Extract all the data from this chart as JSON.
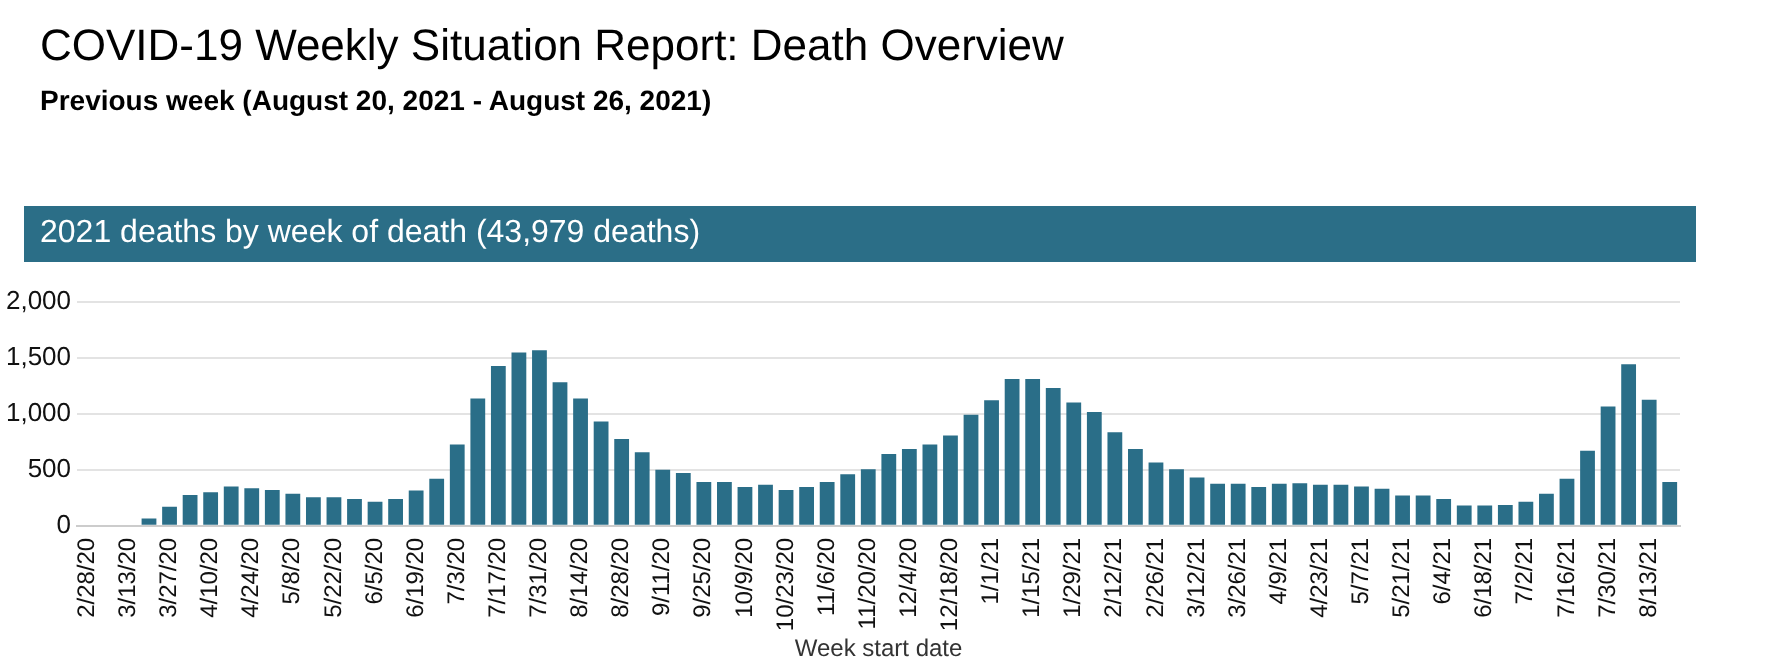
{
  "chart_data": {
    "type": "bar",
    "title": "COVID-19 Weekly Situation Report: Death Overview",
    "subtitle": "Previous week (August 20, 2021 - August 26, 2021)",
    "annotations": [
      "2021 deaths by week of death (43,979 deaths)"
    ],
    "xlabel": "Week start date",
    "categories": [
      "2/28/20",
      null,
      "3/13/20",
      null,
      "3/27/20",
      null,
      "4/10/20",
      null,
      "4/24/20",
      null,
      "5/8/20",
      null,
      "5/22/20",
      null,
      "6/5/20",
      null,
      "6/19/20",
      null,
      "7/3/20",
      null,
      "7/17/20",
      null,
      "7/31/20",
      null,
      "8/14/20",
      null,
      "8/28/20",
      null,
      "9/11/20",
      null,
      "9/25/20",
      null,
      "10/9/20",
      null,
      "10/23/20",
      null,
      "11/6/20",
      null,
      "11/20/20",
      null,
      "12/4/20",
      null,
      "12/18/20",
      null,
      "1/1/21",
      null,
      "1/15/21",
      null,
      "1/29/21",
      null,
      "2/12/21",
      null,
      "2/26/21",
      null,
      "3/12/21",
      null,
      "3/26/21",
      null,
      "4/9/21",
      null,
      "4/23/21",
      null,
      "5/7/21",
      null,
      "5/21/21",
      null,
      "6/4/21",
      null,
      "6/18/21",
      null,
      "7/2/21",
      null,
      "7/16/21",
      null,
      "7/30/21",
      null,
      "8/13/21",
      null
    ],
    "values": [
      0,
      0,
      0,
      65,
      170,
      275,
      300,
      350,
      335,
      320,
      285,
      255,
      255,
      240,
      215,
      240,
      315,
      420,
      725,
      1135,
      1425,
      1545,
      1565,
      1280,
      1135,
      930,
      775,
      655,
      500,
      470,
      390,
      390,
      345,
      365,
      320,
      345,
      390,
      460,
      505,
      640,
      685,
      725,
      805,
      990,
      1120,
      1310,
      1310,
      1230,
      1100,
      1015,
      835,
      685,
      565,
      505,
      430,
      375,
      375,
      345,
      375,
      380,
      365,
      365,
      350,
      330,
      270,
      270,
      240,
      180,
      180,
      185,
      215,
      285,
      420,
      670,
      1065,
      1440,
      1125,
      390
    ],
    "color": "#2a6e88",
    "ylim": [
      0,
      2000
    ],
    "yticks": [
      0,
      500,
      {
        "value": 1000,
        "label": "1,000"
      },
      {
        "value": 1500,
        "label": "1,500"
      },
      {
        "value": 2000,
        "label": "2,000"
      }
    ],
    "grid": "y",
    "legend": false
  }
}
